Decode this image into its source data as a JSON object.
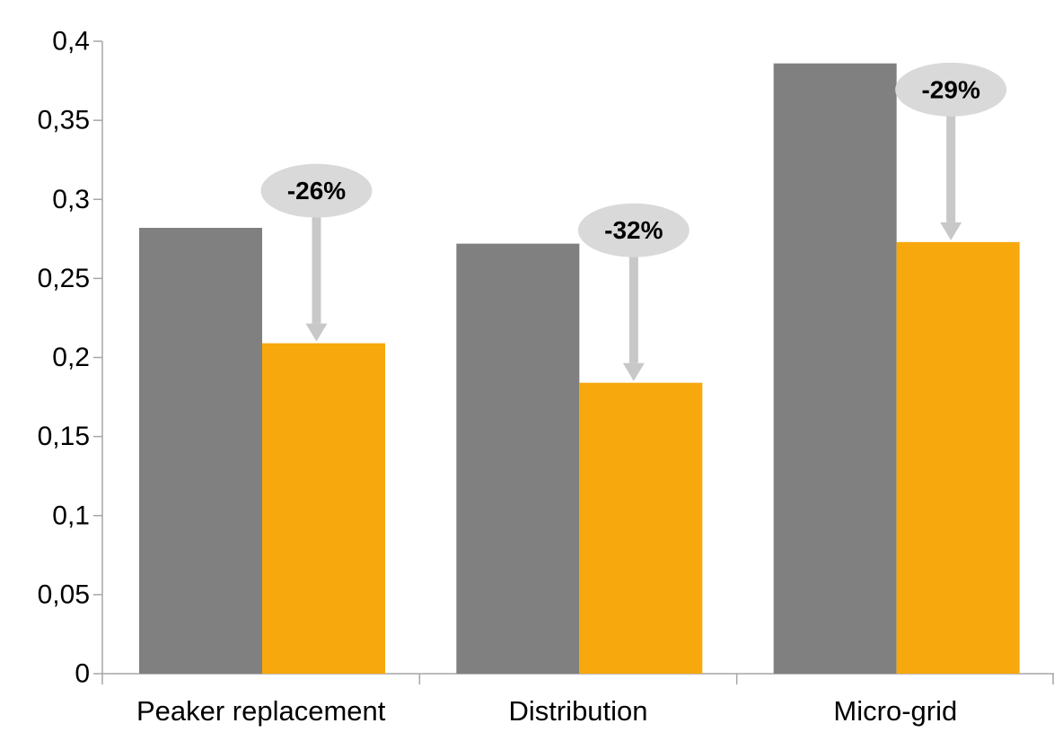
{
  "chart_data": {
    "type": "bar",
    "title": "",
    "xlabel": "",
    "ylabel": "",
    "categories": [
      "Peaker replacement",
      "Distribution",
      "Micro-grid"
    ],
    "series": [
      {
        "values": [
          0.282,
          0.272,
          0.386
        ]
      },
      {
        "values": [
          0.209,
          0.184,
          0.273
        ]
      }
    ],
    "ylim": [
      0,
      0.4
    ],
    "yticks": [
      0,
      0.05,
      0.1,
      0.15,
      0.2,
      0.25,
      0.3,
      0.35,
      0.4
    ],
    "ytick_labels": [
      "0",
      "0,05",
      "0,1",
      "0,15",
      "0,2",
      "0,25",
      "0,3",
      "0,35",
      "0,4"
    ],
    "annotations": [
      {
        "category": "Peaker replacement",
        "text": "-26%"
      },
      {
        "category": "Distribution",
        "text": "-32%"
      },
      {
        "category": "Micro-grid",
        "text": "-29%"
      }
    ],
    "grid": false,
    "legend": "none",
    "colors": {
      "series": [
        "#808080",
        "#f7a80d"
      ],
      "axis": "#a6a6a6",
      "annotation_bubble": "#d9d9d9",
      "annotation_arrow": "#c8c8c8"
    }
  }
}
